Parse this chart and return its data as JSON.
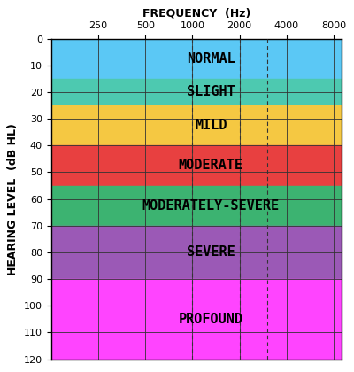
{
  "title": "FREQUENCY  (Hz)",
  "ylabel": "HEARING LEVEL  (dB HL)",
  "freq_ticks": [
    250,
    500,
    1000,
    2000,
    4000,
    8000
  ],
  "hl_ticks": [
    0,
    10,
    20,
    30,
    40,
    50,
    60,
    70,
    80,
    90,
    100,
    110,
    120
  ],
  "ylim": [
    0,
    120
  ],
  "xlim": [
    125,
    9000
  ],
  "zones": [
    {
      "label": "NORMAL",
      "ymin": 0,
      "ymax": 15,
      "color": "#5BC8F5"
    },
    {
      "label": "SLIGHT",
      "ymin": 15,
      "ymax": 25,
      "color": "#4DC9B0"
    },
    {
      "label": "MILD",
      "ymin": 25,
      "ymax": 40,
      "color": "#F5C842"
    },
    {
      "label": "MODERATE",
      "ymin": 40,
      "ymax": 55,
      "color": "#E84040"
    },
    {
      "label": "MODERATELY-SEVERE",
      "ymin": 55,
      "ymax": 70,
      "color": "#3CB371"
    },
    {
      "label": "SEVERE",
      "ymin": 70,
      "ymax": 90,
      "color": "#9B59B6"
    },
    {
      "label": "PROFOUND",
      "ymin": 90,
      "ymax": 120,
      "color": "#FF44FF"
    }
  ],
  "solid_vlines": [
    250,
    500,
    1000,
    2000,
    4000,
    8000
  ],
  "dashed_vlines": [
    1000,
    2000,
    3000
  ],
  "grid_color": "#333333",
  "background_color": "#ffffff",
  "tick_fontsize": 8,
  "label_fontsize": 9,
  "title_fontsize": 9,
  "zone_label_fontsize": 11,
  "fig_width": 4.0,
  "fig_height": 4.2,
  "fig_dpi": 100
}
